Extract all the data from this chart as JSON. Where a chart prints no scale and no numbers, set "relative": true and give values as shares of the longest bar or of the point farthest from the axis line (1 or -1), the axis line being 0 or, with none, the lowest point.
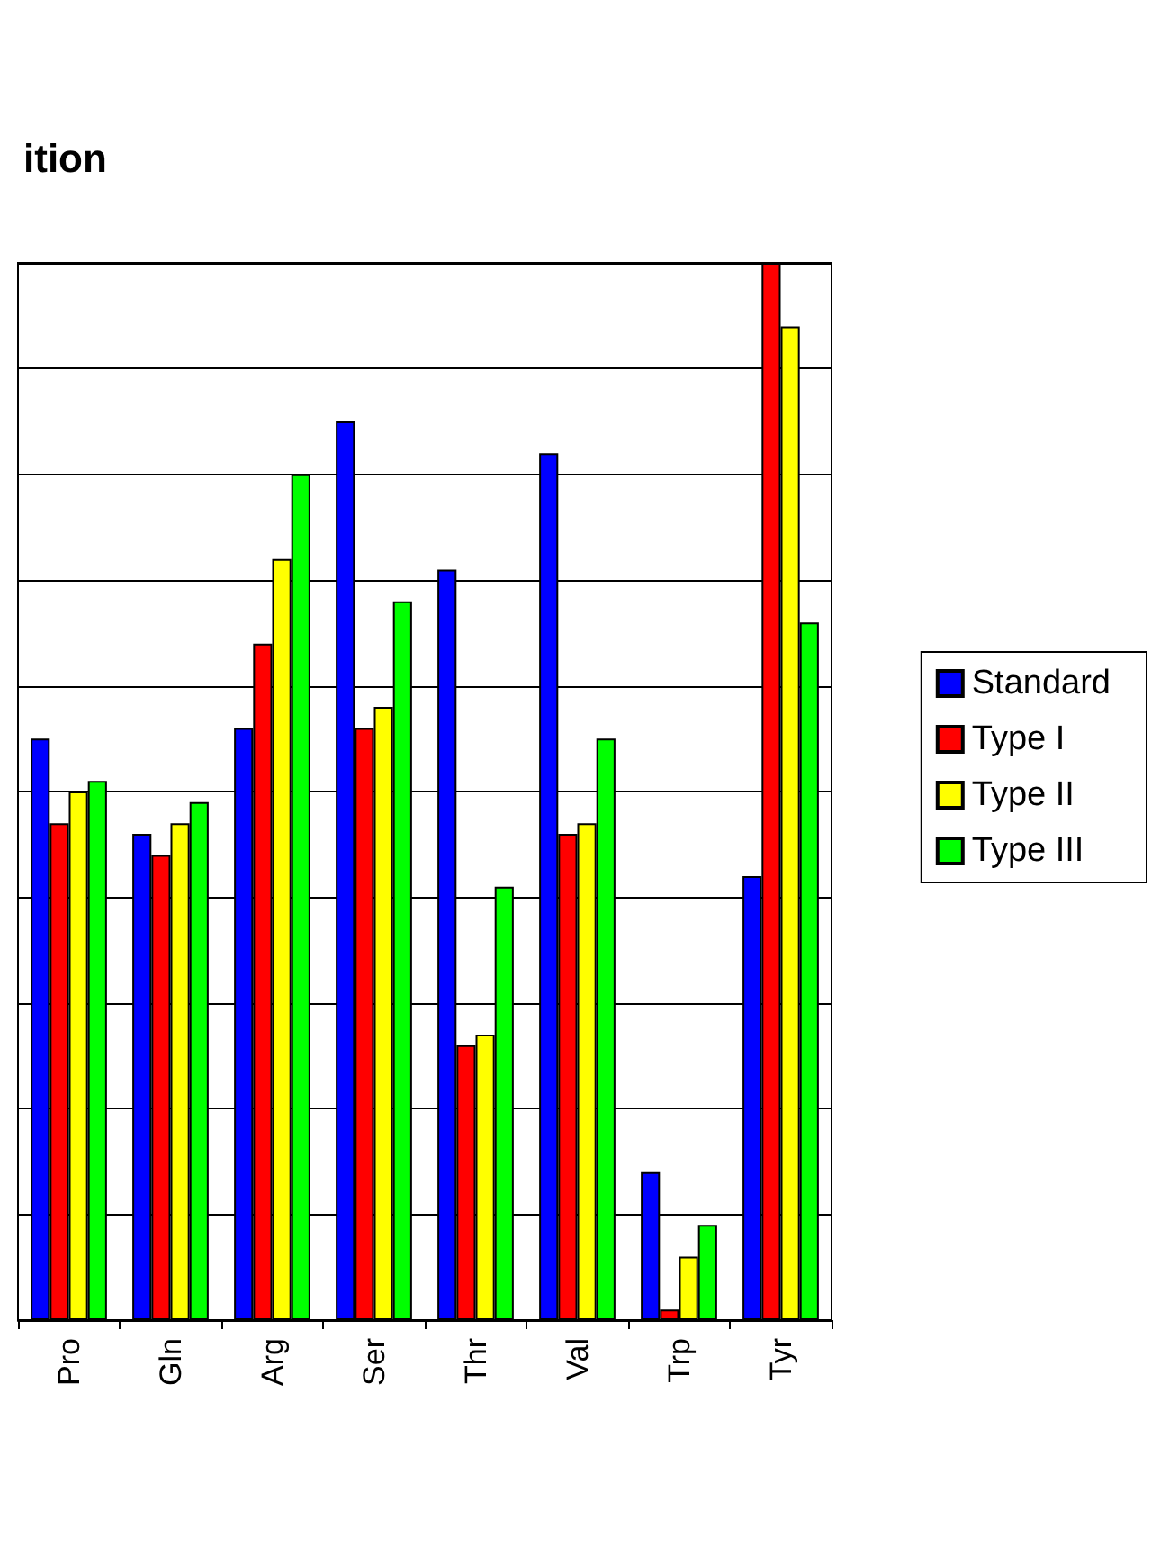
{
  "chart_data": {
    "type": "bar",
    "title": "ition",
    "relative": true,
    "grid": "y",
    "legend": "right",
    "categories": [
      "Pro",
      "Gln",
      "Arg",
      "Ser",
      "Thr",
      "Val",
      "Trp",
      "Tyr"
    ],
    "series": [
      {
        "name": "Standard",
        "color": "#0000ff",
        "values": [
          0.55,
          0.46,
          0.56,
          0.85,
          0.71,
          0.82,
          0.14,
          0.42
        ]
      },
      {
        "name": "Type I",
        "color": "#ff0000",
        "values": [
          0.47,
          0.44,
          0.64,
          0.56,
          0.26,
          0.46,
          0.01,
          1
        ]
      },
      {
        "name": "Type II",
        "color": "#ffff00",
        "values": [
          0.5,
          0.47,
          0.72,
          0.58,
          0.27,
          0.47,
          0.06,
          0.94
        ]
      },
      {
        "name": "Type III",
        "color": "#00ff00",
        "values": [
          0.51,
          0.49,
          0.8,
          0.68,
          0.41,
          0.55,
          0.09,
          0.66
        ]
      }
    ]
  }
}
